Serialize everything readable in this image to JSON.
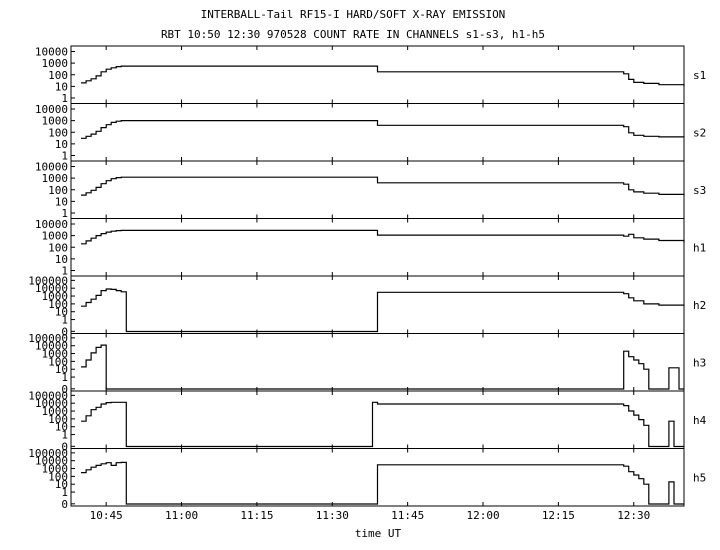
{
  "chart_data": {
    "type": "line",
    "title": "INTERBALL-Tail RF15-I HARD/SOFT X-RAY EMISSION",
    "subtitle": "RBT 10:50 12:30 970528  COUNT RATE IN CHANNELS s1-s3, h1-h5",
    "xlabel": "time UT",
    "x_ticks": [
      "10:45",
      "11:00",
      "11:15",
      "11:30",
      "11:45",
      "12:00",
      "12:15",
      "12:30"
    ],
    "xlim": [
      "10:38",
      "12:40"
    ],
    "y_scale": "log",
    "panels": [
      {
        "name": "s1",
        "y_ticks": [
          "10000",
          "1000",
          "100",
          "10",
          "1"
        ],
        "ylim": [
          0.5,
          20000
        ],
        "series": [
          {
            "x": [
              "10:40",
              "10:41",
              "10:42",
              "10:43",
              "10:44",
              "10:45",
              "10:46",
              "10:47",
              "10:48",
              "11:38",
              "11:39",
              "12:27",
              "12:28",
              "12:29",
              "12:30",
              "12:32",
              "12:35",
              "12:40"
            ],
            "values": [
              20,
              30,
              45,
              80,
              180,
              300,
              400,
              500,
              550,
              550,
              180,
              180,
              120,
              40,
              22,
              18,
              14,
              10
            ]
          }
        ]
      },
      {
        "name": "s2",
        "y_ticks": [
          "10000",
          "1000",
          "100",
          "10",
          "1"
        ],
        "ylim": [
          0.5,
          20000
        ],
        "series": [
          {
            "x": [
              "10:40",
              "10:41",
              "10:42",
              "10:43",
              "10:44",
              "10:45",
              "10:46",
              "10:47",
              "10:48",
              "11:38",
              "11:39",
              "12:27",
              "12:28",
              "12:29",
              "12:30",
              "12:32",
              "12:35",
              "12:40"
            ],
            "values": [
              30,
              45,
              70,
              120,
              250,
              450,
              700,
              900,
              1000,
              1000,
              400,
              400,
              300,
              90,
              55,
              45,
              40,
              38
            ]
          }
        ]
      },
      {
        "name": "s3",
        "y_ticks": [
          "10000",
          "1000",
          "100",
          "10",
          "1"
        ],
        "ylim": [
          0.5,
          20000
        ],
        "series": [
          {
            "x": [
              "10:40",
              "10:41",
              "10:42",
              "10:43",
              "10:44",
              "10:45",
              "10:46",
              "10:47",
              "10:48",
              "11:38",
              "11:39",
              "12:27",
              "12:28",
              "12:29",
              "12:30",
              "12:32",
              "12:35",
              "12:40"
            ],
            "values": [
              35,
              55,
              90,
              160,
              330,
              600,
              900,
              1100,
              1200,
              1200,
              400,
              400,
              300,
              100,
              65,
              50,
              40,
              35
            ]
          }
        ]
      },
      {
        "name": "h1",
        "y_ticks": [
          "10000",
          "1000",
          "100",
          "10",
          "1"
        ],
        "ylim": [
          0.5,
          20000
        ],
        "series": [
          {
            "x": [
              "10:40",
              "10:41",
              "10:42",
              "10:43",
              "10:44",
              "10:45",
              "10:46",
              "10:47",
              "10:48",
              "11:38",
              "11:39",
              "12:27",
              "12:28",
              "12:29",
              "12:30",
              "12:32",
              "12:35",
              "12:40"
            ],
            "values": [
              200,
              350,
              600,
              1000,
              1500,
              2000,
              2400,
              2700,
              2800,
              2800,
              1100,
              1100,
              900,
              1300,
              650,
              500,
              380,
              280
            ]
          }
        ]
      },
      {
        "name": "h2",
        "y_ticks": [
          "100000",
          "10000",
          "1000",
          "100",
          "10",
          "1",
          "0"
        ],
        "ylim": [
          0.03,
          200000
        ],
        "series": [
          {
            "x": [
              "10:40",
              "10:41",
              "10:42",
              "10:43",
              "10:44",
              "10:45",
              "10:46",
              "10:47",
              "10:48",
              "10:49",
              "10:50",
              "11:38",
              "11:39",
              "12:27",
              "12:28",
              "12:29",
              "12:30",
              "12:32",
              "12:35",
              "12:40"
            ],
            "values": [
              50,
              150,
              400,
              1200,
              5000,
              8000,
              7000,
              5000,
              3500,
              0.03,
              0.03,
              0.03,
              3000,
              3000,
              2000,
              600,
              250,
              100,
              70,
              60
            ]
          }
        ]
      },
      {
        "name": "h3",
        "y_ticks": [
          "100000",
          "10000",
          "1000",
          "100",
          "10",
          "1",
          "0"
        ],
        "ylim": [
          0.03,
          200000
        ],
        "series": [
          {
            "x": [
              "10:40",
              "10:41",
              "10:42",
              "10:43",
              "10:44",
              "10:45",
              "12:27",
              "12:28",
              "12:29",
              "12:30",
              "12:31",
              "12:32",
              "12:33",
              "12:34",
              "12:35",
              "12:36",
              "12:37",
              "12:38",
              "12:39",
              "12:40"
            ],
            "values": [
              20,
              150,
              1200,
              6000,
              12000,
              0.03,
              0.03,
              2000,
              400,
              150,
              50,
              10,
              0.03,
              0.03,
              0.03,
              0.03,
              15,
              15,
              0.03,
              0.03
            ]
          }
        ]
      },
      {
        "name": "h4",
        "y_ticks": [
          "100000",
          "10000",
          "1000",
          "100",
          "10",
          "1",
          "0"
        ],
        "ylim": [
          0.03,
          200000
        ],
        "series": [
          {
            "x": [
              "10:40",
              "10:41",
              "10:42",
              "10:43",
              "10:44",
              "10:45",
              "10:46",
              "10:47",
              "10:48",
              "10:49",
              "11:38",
              "11:39",
              "12:27",
              "12:28",
              "12:29",
              "12:30",
              "12:31",
              "12:32",
              "12:33",
              "12:34",
              "12:36",
              "12:37",
              "12:38",
              "12:40"
            ],
            "values": [
              50,
              250,
              1500,
              3000,
              8000,
              12000,
              13000,
              13000,
              13000,
              0.03,
              13000,
              8000,
              8000,
              5000,
              1000,
              300,
              80,
              15,
              0.03,
              0.03,
              0.03,
              50,
              0.03,
              0.03
            ]
          }
        ]
      },
      {
        "name": "h5",
        "y_ticks": [
          "100000",
          "10000",
          "1000",
          "100",
          "10",
          "1",
          "0"
        ],
        "ylim": [
          0.03,
          200000
        ],
        "series": [
          {
            "x": [
              "10:40",
              "10:41",
              "10:42",
              "10:43",
              "10:44",
              "10:45",
              "10:46",
              "10:47",
              "10:48",
              "10:49",
              "11:38",
              "11:39",
              "12:27",
              "12:28",
              "12:29",
              "12:30",
              "12:31",
              "12:32",
              "12:33",
              "12:34",
              "12:36",
              "12:37",
              "12:38",
              "12:40"
            ],
            "values": [
              300,
              700,
              1500,
              2500,
              4000,
              5500,
              2500,
              5500,
              6000,
              0.03,
              0.03,
              3000,
              3000,
              2000,
              400,
              150,
              50,
              10,
              0.03,
              0.03,
              0.03,
              20,
              0.03,
              0.03
            ]
          }
        ]
      }
    ]
  }
}
